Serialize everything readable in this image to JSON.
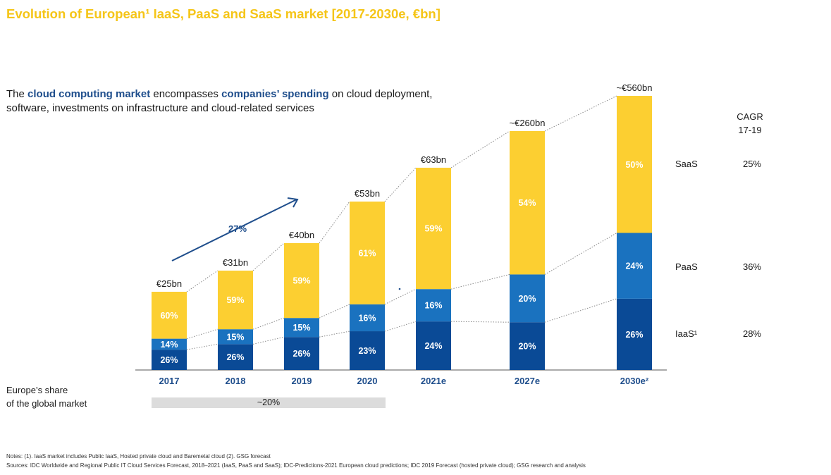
{
  "title": "Evolution of European¹ IaaS, PaaS and SaaS market [2017-2030e, €bn]",
  "subtitle": {
    "p1": "The ",
    "b1": "cloud computing market",
    "p2": " encompasses ",
    "b2": "companies’ spending",
    "p3": " on cloud deployment, software, investments on infrastructure and cloud-related services"
  },
  "cagr_header": {
    "line1": "CAGR",
    "line2": "17-19"
  },
  "growth_arrow": {
    "label": "27%",
    "color": "#1f4e8c"
  },
  "share": {
    "label_line1": "Europe’s share",
    "label_line2": "of the global market",
    "value": "~20%"
  },
  "notes": {
    "line1": "Notes: (1). IaaS market includes Public IaaS, Hosted private cloud and Baremetal cloud (2). GSG forecast",
    "line2": "Sources: IDC Worldwide and Regional Public IT Cloud Services Forecast, 2018–2021 (IaaS, PaaS and SaaS); IDC-Predictions-2021 European cloud predictions; IDC 2019 Forecast (hosted private cloud); GSG research and analysis"
  },
  "chart_data": {
    "type": "bar",
    "stacked": true,
    "categories": [
      "2017",
      "2018",
      "2019",
      "2020",
      "2021e",
      "2027e",
      "2030e²"
    ],
    "totals": [
      25,
      31,
      40,
      53,
      63,
      260,
      560
    ],
    "total_labels": [
      "€25bn",
      "€31bn",
      "€40bn",
      "€53bn",
      "€63bn",
      "~€260bn",
      "~€560bn"
    ],
    "series": [
      {
        "name": "IaaS¹",
        "cagr": "28%",
        "color": "#0a4a96",
        "shares": [
          26,
          26,
          26,
          23,
          24,
          20,
          26
        ],
        "labels": [
          "26%",
          "26%",
          "26%",
          "23%",
          "24%",
          "20%",
          "26%"
        ]
      },
      {
        "name": "PaaS",
        "cagr": "36%",
        "color": "#1a72bf",
        "shares": [
          14,
          15,
          15,
          16,
          16,
          20,
          24
        ],
        "labels": [
          "14%",
          "15%",
          "15%",
          "16%",
          "16%",
          "20%",
          "24%"
        ]
      },
      {
        "name": "SaaS",
        "cagr": "25%",
        "color": "#fccf31",
        "shares": [
          60,
          59,
          59,
          61,
          59,
          54,
          50
        ],
        "labels": [
          "60%",
          "59%",
          "59%",
          "61%",
          "59%",
          "54%",
          "50%"
        ]
      }
    ],
    "axis_break": true,
    "grid": false,
    "legend_position": "right"
  }
}
